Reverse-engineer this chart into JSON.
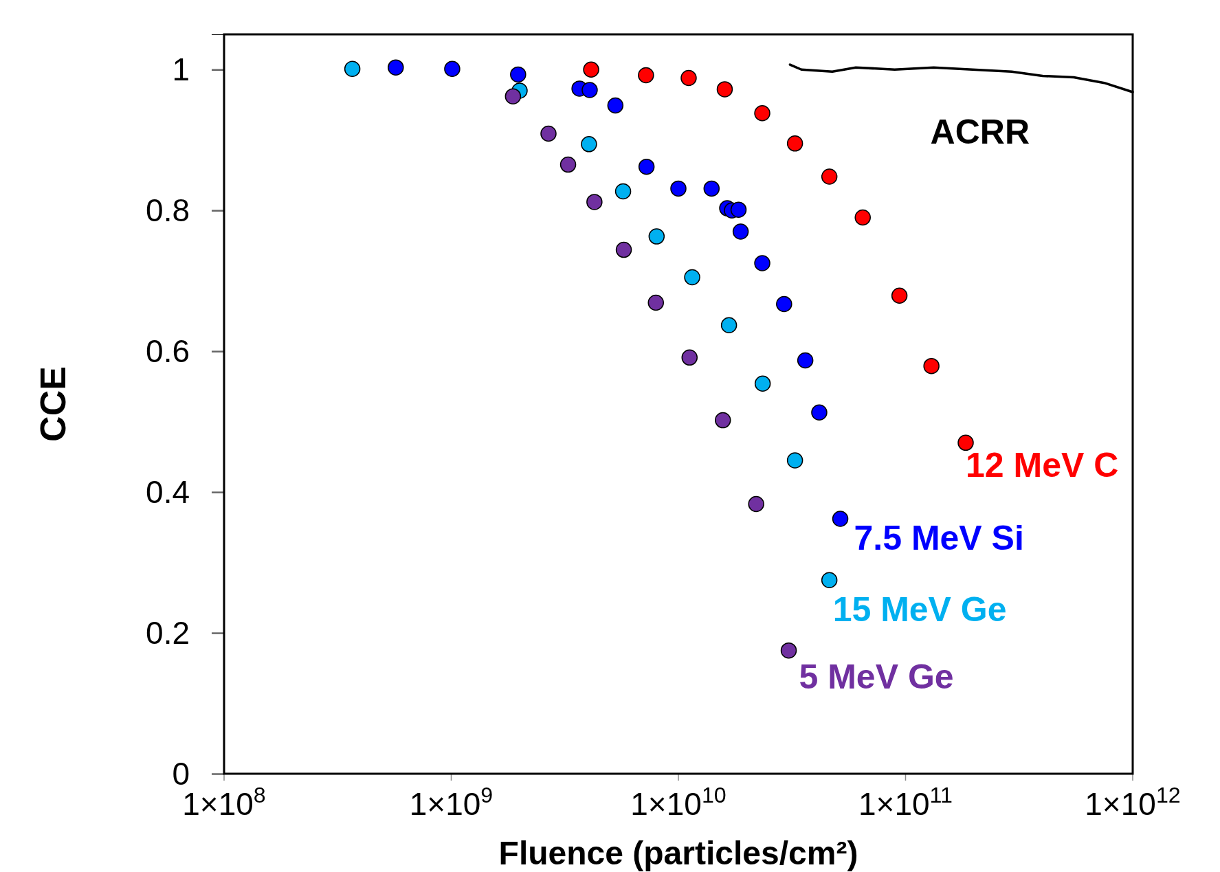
{
  "chart_data": {
    "type": "scatter",
    "xlabel": "Fluence (particles/cm²)",
    "ylabel": "CCE",
    "log": "x",
    "xlim": [
      100000000.0,
      1000000000000.0
    ],
    "ylim": [
      0,
      1.05
    ],
    "xticks": [
      {
        "value": 100000000.0,
        "label": "1×10$^{8}$"
      },
      {
        "value": 1000000000.0,
        "label": "1×10$^{9}$"
      },
      {
        "value": 10000000000.0,
        "label": "1×10$^{10}$"
      },
      {
        "value": 100000000000.0,
        "label": "1×10$^{11}$"
      },
      {
        "value": 1000000000000.0,
        "label": "1×10$^{12}$"
      }
    ],
    "yticks": [
      0,
      0.2,
      0.4,
      0.6,
      0.8,
      1
    ],
    "grid": false,
    "marker": "circle",
    "series": [
      {
        "name": "ACRR",
        "type": "line",
        "color": "#000000",
        "line_style": "solid",
        "marker": "none",
        "x": [
          31000000000.0,
          34800000000.0,
          47600000000.0,
          60400000000.0,
          89600000000.0,
          133000000000.0,
          197000000000.0,
          293000000000.0,
          401000000000.0,
          550000000000.0,
          750000000000.0,
          1000000000000.0
        ],
        "values": [
          1.007,
          1.0,
          0.997,
          1.003,
          1.0,
          1.003,
          1.0,
          0.997,
          0.991,
          0.989,
          0.981,
          0.968
        ]
      },
      {
        "name": "12 MeV C",
        "color": "#ff0000",
        "x": [
          4130000000.0,
          7200000000.0,
          11100000000.0,
          16000000000.0,
          23400000000.0,
          32600000000.0,
          46200000000.0,
          64800000000.0,
          94000000000.0,
          130000000000.0,
          184000000000.0
        ],
        "values": [
          1.0,
          0.992,
          0.988,
          0.972,
          0.938,
          0.895,
          0.848,
          0.79,
          0.679,
          0.579,
          0.47
        ]
      },
      {
        "name": "7.5 MeV Si",
        "color": "#0000ff",
        "x": [
          570000000.0,
          1010000000.0,
          1970000000.0,
          3670000000.0,
          4070000000.0,
          5280000000.0,
          7240000000.0,
          10000000000.0,
          14000000000.0,
          16400000000.0,
          17200000000.0,
          18400000000.0,
          18800000000.0,
          23400000000.0,
          29200000000.0,
          36200000000.0,
          41700000000.0,
          51600000000.0
        ],
        "values": [
          1.003,
          1.001,
          0.993,
          0.973,
          0.971,
          0.949,
          0.862,
          0.831,
          0.831,
          0.803,
          0.8,
          0.801,
          0.77,
          0.725,
          0.667,
          0.587,
          0.513,
          0.362
        ]
      },
      {
        "name": "15 MeV Ge",
        "color": "#00b0f0",
        "x": [
          367000000.0,
          2000000000.0,
          4040000000.0,
          5710000000.0,
          8020000000.0,
          11500000000.0,
          16700000000.0,
          23500000000.0,
          32600000000.0,
          46200000000.0
        ],
        "values": [
          1.001,
          0.97,
          0.894,
          0.827,
          0.763,
          0.705,
          0.637,
          0.554,
          0.445,
          0.275
        ]
      },
      {
        "name": "5 MeV Ge",
        "color": "#7030a0",
        "x": [
          1870000000.0,
          2680000000.0,
          3270000000.0,
          4270000000.0,
          5750000000.0,
          7960000000.0,
          11200000000.0,
          15700000000.0,
          22000000000.0,
          30600000000.0
        ],
        "values": [
          0.962,
          0.909,
          0.865,
          0.812,
          0.744,
          0.669,
          0.591,
          0.502,
          0.383,
          0.175
        ]
      }
    ]
  }
}
